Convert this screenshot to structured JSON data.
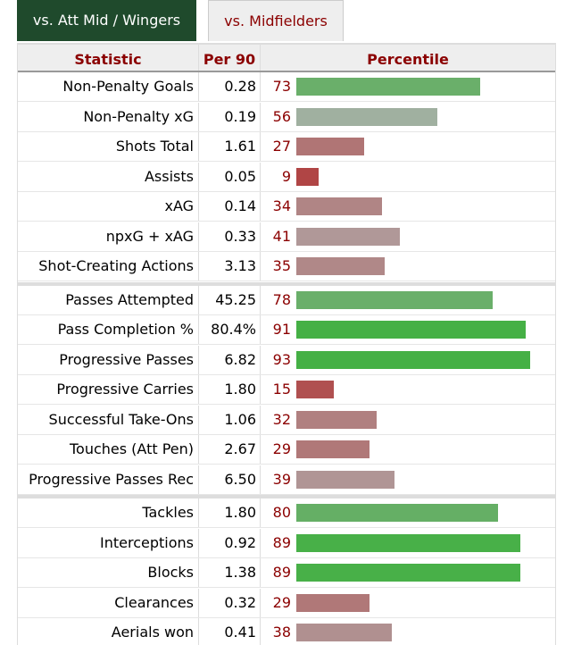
{
  "tabs": [
    {
      "label": "vs. Att Mid / Wingers",
      "active": true
    },
    {
      "label": "vs. Midfielders",
      "active": false
    }
  ],
  "headers": {
    "statistic": "Statistic",
    "per90": "Per 90",
    "percentile": "Percentile"
  },
  "groups": [
    [
      {
        "stat": "Non-Penalty Goals",
        "per90": "0.28",
        "percentile": 73,
        "color": "#6aaf6a"
      },
      {
        "stat": "Non-Penalty xG",
        "per90": "0.19",
        "percentile": 56,
        "color": "#a0b0a0"
      },
      {
        "stat": "Shots Total",
        "per90": "1.61",
        "percentile": 27,
        "color": "#b07575"
      },
      {
        "stat": "Assists",
        "per90": "0.05",
        "percentile": 9,
        "color": "#b04545"
      },
      {
        "stat": "xAG",
        "per90": "0.14",
        "percentile": 34,
        "color": "#b08585"
      },
      {
        "stat": "npxG + xAG",
        "per90": "0.33",
        "percentile": 41,
        "color": "#b09898"
      },
      {
        "stat": "Shot-Creating Actions",
        "per90": "3.13",
        "percentile": 35,
        "color": "#b08888"
      }
    ],
    [
      {
        "stat": "Passes Attempted",
        "per90": "45.25",
        "percentile": 78,
        "color": "#6aaf6a"
      },
      {
        "stat": "Pass Completion %",
        "per90": "80.4%",
        "percentile": 91,
        "color": "#45b045"
      },
      {
        "stat": "Progressive Passes",
        "per90": "6.82",
        "percentile": 93,
        "color": "#45b045"
      },
      {
        "stat": "Progressive Carries",
        "per90": "1.80",
        "percentile": 15,
        "color": "#b05050"
      },
      {
        "stat": "Successful Take-Ons",
        "per90": "1.06",
        "percentile": 32,
        "color": "#b08080"
      },
      {
        "stat": "Touches (Att Pen)",
        "per90": "2.67",
        "percentile": 29,
        "color": "#b07878"
      },
      {
        "stat": "Progressive Passes Rec",
        "per90": "6.50",
        "percentile": 39,
        "color": "#b09595"
      }
    ],
    [
      {
        "stat": "Tackles",
        "per90": "1.80",
        "percentile": 80,
        "color": "#65af65"
      },
      {
        "stat": "Interceptions",
        "per90": "0.92",
        "percentile": 89,
        "color": "#48b048"
      },
      {
        "stat": "Blocks",
        "per90": "1.38",
        "percentile": 89,
        "color": "#48b048"
      },
      {
        "stat": "Clearances",
        "per90": "0.32",
        "percentile": 29,
        "color": "#b07878"
      },
      {
        "stat": "Aerials won",
        "per90": "0.41",
        "percentile": 38,
        "color": "#b09090"
      }
    ]
  ]
}
